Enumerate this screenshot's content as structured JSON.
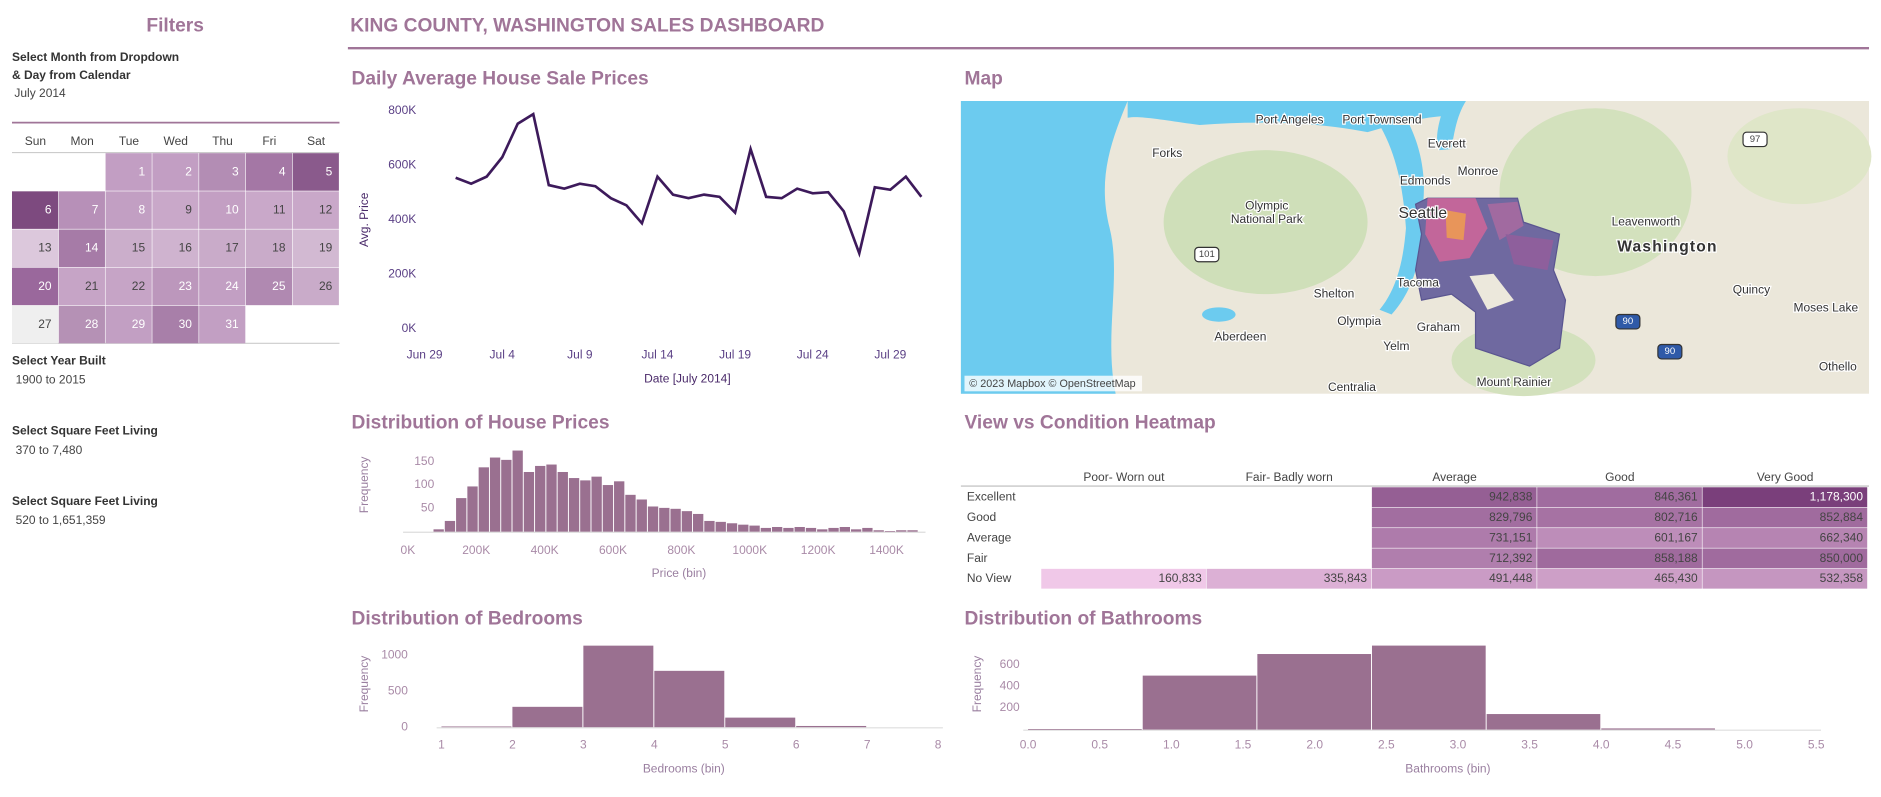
{
  "header": {
    "title": "KING COUNTY, WASHINGTON SALES DASHBOARD"
  },
  "filters": {
    "title": "Filters",
    "month_prompt": [
      "Select Month from Dropdown",
      "& Day from Calendar"
    ],
    "month": "July 2014",
    "calendar": {
      "weekdays": [
        "Sun",
        "Mon",
        "Tue",
        "Wed",
        "Thu",
        "Fri",
        "Sat"
      ],
      "weeks": [
        [
          null,
          null,
          1,
          2,
          3,
          4,
          5
        ],
        [
          6,
          7,
          8,
          9,
          10,
          11,
          12
        ],
        [
          13,
          14,
          15,
          16,
          17,
          18,
          19
        ],
        [
          20,
          21,
          22,
          23,
          24,
          25,
          26
        ],
        [
          27,
          28,
          29,
          30,
          31,
          null,
          null
        ]
      ],
      "colors": [
        [
          null,
          null,
          "#c29ec3",
          "#c29ec3",
          "#b38db4",
          "#a477a5",
          "#8a5a8c"
        ],
        [
          "#7d4a7f",
          "#b790b8",
          "#c29fc3",
          "#c9a8c9",
          "#c39fc3",
          "#c9a8c9",
          "#c9a8c9"
        ],
        [
          "#dcc8dc",
          "#a67ba7",
          "#cbaecb",
          "#cfb3cf",
          "#c9abc9",
          "#c9abc9",
          "#d2b9d2"
        ],
        [
          "#9a689c",
          "#c6a4c6",
          "#c6a4c6",
          "#bc97bc",
          "#c29fc3",
          "#b089b1",
          "#c9abc9"
        ],
        [
          "#efefef",
          "#b591b5",
          "#c29fc3",
          "#a87fa9",
          "#c29fc3",
          null,
          null
        ]
      ]
    },
    "ranges": [
      {
        "label": "Select Year Built",
        "value": "1900 to 2015"
      },
      {
        "label": "Select Square Feet Living",
        "value": "370 to 7,480"
      },
      {
        "label": "Select Square Feet Living",
        "value": "520 to 1,651,359"
      }
    ]
  },
  "chart_data": [
    {
      "type": "line",
      "title": "Daily Average House Sale Prices",
      "x_label": "Date [July 2014]",
      "y_label": "Avg. Price",
      "color": "#3d1a5b",
      "x": [
        "2014-07-01",
        "2014-07-02",
        "2014-07-03",
        "2014-07-04",
        "2014-07-05",
        "2014-07-06",
        "2014-07-07",
        "2014-07-08",
        "2014-07-09",
        "2014-07-10",
        "2014-07-11",
        "2014-07-12",
        "2014-07-13",
        "2014-07-14",
        "2014-07-15",
        "2014-07-16",
        "2014-07-17",
        "2014-07-18",
        "2014-07-19",
        "2014-07-20",
        "2014-07-21",
        "2014-07-22",
        "2014-07-23",
        "2014-07-24",
        "2014-07-25",
        "2014-07-26",
        "2014-07-27",
        "2014-07-28",
        "2014-07-29",
        "2014-07-30",
        "2014-07-31"
      ],
      "values": [
        554000,
        532000,
        558000,
        629000,
        752000,
        787000,
        527000,
        514000,
        532000,
        523000,
        479000,
        453000,
        387000,
        558000,
        492000,
        479000,
        492000,
        484000,
        426000,
        659000,
        484000,
        479000,
        514000,
        497000,
        501000,
        431000,
        277000,
        519000,
        510000,
        558000,
        484000
      ],
      "xlim": [
        "2014-06-28",
        "2014-08-01"
      ],
      "xticks": [
        {
          "value": "2014-06-29",
          "label": "Jun 29"
        },
        {
          "value": "2014-07-04",
          "label": "Jul 4"
        },
        {
          "value": "2014-07-09",
          "label": "Jul 9"
        },
        {
          "value": "2014-07-14",
          "label": "Jul 14"
        },
        {
          "value": "2014-07-19",
          "label": "Jul 19"
        },
        {
          "value": "2014-07-24",
          "label": "Jul 24"
        },
        {
          "value": "2014-07-29",
          "label": "Jul 29"
        }
      ],
      "ylim": [
        0,
        800000
      ],
      "yticks": [
        {
          "value": 0,
          "label": "0K"
        },
        {
          "value": 200000,
          "label": "200K"
        },
        {
          "value": 400000,
          "label": "400K"
        },
        {
          "value": 600000,
          "label": "600K"
        },
        {
          "value": 800000,
          "label": "800K"
        }
      ]
    },
    {
      "type": "histogram",
      "title": "Distribution of House Prices",
      "x_label": "Price (bin)",
      "y_label": "Frequency",
      "color": "#9a7090",
      "bins": [
        75000,
        108000,
        141000,
        174000,
        207000,
        240000,
        273000,
        306000,
        339000,
        372000,
        405000,
        438000,
        471000,
        504000,
        537000,
        570000,
        603000,
        636000,
        669000,
        702000,
        735000,
        768000,
        801000,
        834000,
        867000,
        900000,
        933000,
        966000,
        999000,
        1032000,
        1065000,
        1098000,
        1131000,
        1164000,
        1197000,
        1230000,
        1263000,
        1296000,
        1329000,
        1362000,
        1395000,
        1428000,
        1461000,
        1494000
      ],
      "values": [
        5,
        23,
        72,
        97,
        138,
        159,
        154,
        174,
        128,
        141,
        144,
        128,
        115,
        110,
        118,
        100,
        108,
        79,
        69,
        54,
        51,
        49,
        44,
        38,
        23,
        21,
        18,
        15,
        13,
        8,
        10,
        8,
        10,
        8,
        5,
        8,
        10,
        5,
        8,
        3,
        1,
        3,
        3
      ],
      "xlim": [
        0,
        1500000
      ],
      "xticks": [
        {
          "value": 0,
          "label": "0K"
        },
        {
          "value": 200000,
          "label": "200K"
        },
        {
          "value": 400000,
          "label": "400K"
        },
        {
          "value": 600000,
          "label": "600K"
        },
        {
          "value": 800000,
          "label": "800K"
        },
        {
          "value": 1000000,
          "label": "1000K"
        },
        {
          "value": 1200000,
          "label": "1200K"
        },
        {
          "value": 1400000,
          "label": "1400K"
        }
      ],
      "ylim": [
        0,
        175
      ],
      "yticks": [
        50,
        100,
        150
      ]
    },
    {
      "type": "heatmap",
      "title": "View vs Condition Heatmap",
      "columns": [
        "Poor- Worn out",
        "Fair- Badly worn",
        "Average",
        "Good",
        "Very Good"
      ],
      "rows": [
        "Excellent",
        "Good",
        "Average",
        "Fair",
        "No View"
      ],
      "colors": [
        "#f0c8e8",
        "#7a3f7b"
      ],
      "values": [
        [
          null,
          null,
          942838,
          846361,
          1178300
        ],
        [
          null,
          null,
          829796,
          802716,
          852884
        ],
        [
          null,
          null,
          731151,
          601167,
          662340
        ],
        [
          null,
          null,
          712392,
          858188,
          850000
        ],
        [
          160833,
          335843,
          491448,
          465430,
          532358
        ]
      ],
      "value_labels": [
        [
          null,
          null,
          "942,838",
          "846,361",
          "1,178,300"
        ],
        [
          null,
          null,
          "829,796",
          "802,716",
          "852,884"
        ],
        [
          null,
          null,
          "731,151",
          "601,167",
          "662,340"
        ],
        [
          null,
          null,
          "712,392",
          "858,188",
          "850,000"
        ],
        [
          "160,833",
          "335,843",
          "491,448",
          "465,430",
          "532,358"
        ]
      ]
    },
    {
      "type": "histogram",
      "title": "Distribution of Bedrooms",
      "x_label": "Bedrooms (bin)",
      "y_label": "Frequency",
      "color": "#9a7090",
      "bins": [
        1,
        2,
        3,
        4,
        5,
        6,
        7
      ],
      "values": [
        10,
        283,
        1133,
        783,
        133,
        17
      ],
      "xlim": [
        1,
        8
      ],
      "xticks": [
        1,
        2,
        3,
        4,
        5,
        6,
        7,
        8
      ],
      "ylim": [
        0,
        1150
      ],
      "yticks": [
        0,
        500,
        1000
      ]
    },
    {
      "type": "histogram",
      "title": "Distribution of Bathrooms",
      "x_label": "Bathrooms (bin)",
      "y_label": "Frequency",
      "color": "#9a7090",
      "bins": [
        0,
        0.8,
        1.6,
        2.4,
        3.2,
        4.0,
        4.8
      ],
      "values": [
        5,
        500,
        700,
        778,
        144,
        11
      ],
      "xlim": [
        0,
        5.5
      ],
      "xticks": [
        {
          "value": 0,
          "label": "0.0"
        },
        0.5,
        {
          "value": 1,
          "label": "1.0"
        },
        1.5,
        {
          "value": 2,
          "label": "2.0"
        },
        2.5,
        {
          "value": 3,
          "label": "3.0"
        },
        3.5,
        {
          "value": 4,
          "label": "4.0"
        },
        4.5,
        {
          "value": 5,
          "label": "5.0"
        },
        5.5
      ],
      "ylim": [
        0,
        780
      ],
      "yticks": [
        200,
        400,
        600
      ]
    }
  ],
  "map": {
    "title": "Map",
    "places": [
      [
        "Port Angeles"
      ],
      [
        "Port Townsend"
      ],
      [
        "Forks"
      ],
      [
        "Everett"
      ],
      [
        "Monroe"
      ],
      [
        "Edmonds"
      ],
      [
        "Olympic",
        "National Park"
      ],
      [
        "Seattle"
      ],
      [
        "Leavenworth"
      ],
      [
        "Washington"
      ],
      [
        "Tacoma"
      ],
      [
        "Shelton"
      ],
      [
        "Quincy"
      ],
      [
        "Moses Lake"
      ],
      [
        "Olympia"
      ],
      [
        "Graham"
      ],
      [
        "Aberdeen"
      ],
      [
        "Yelm"
      ],
      [
        "Othello"
      ],
      [
        "Mount Rainier"
      ],
      [
        "Centralia"
      ]
    ],
    "shields": [
      "101",
      "97",
      "90",
      "90"
    ],
    "attribution": "© 2023 Mapbox © OpenStreetMap"
  }
}
